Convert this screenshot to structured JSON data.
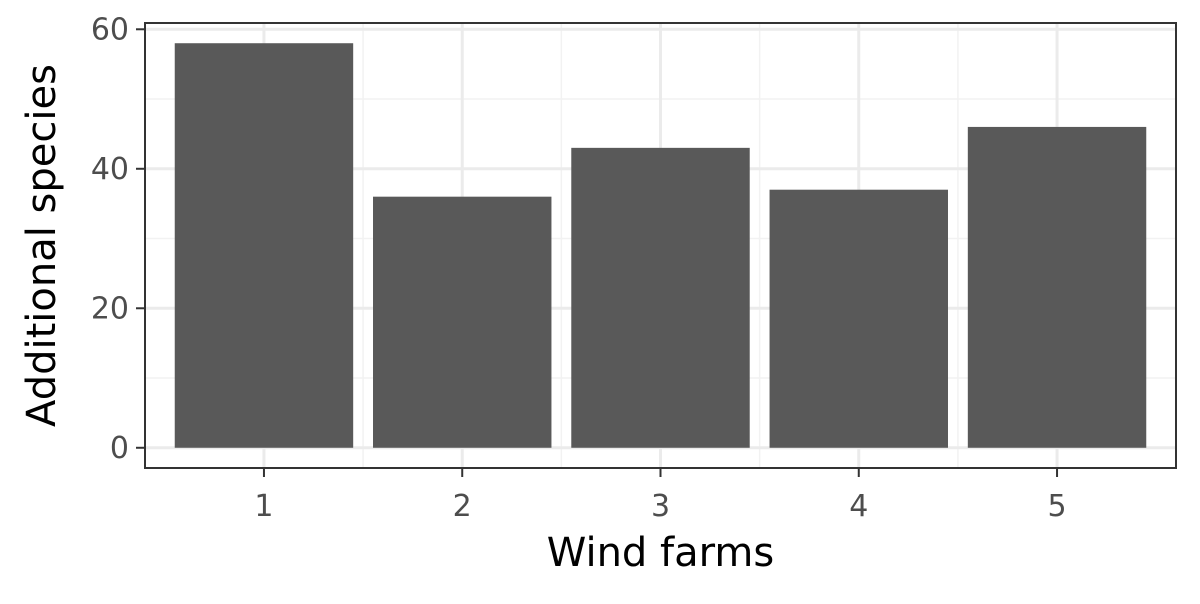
{
  "chart_data": {
    "type": "bar",
    "title": "",
    "xlabel": "Wind farms",
    "ylabel": "Additional species",
    "categories": [
      "1",
      "2",
      "3",
      "4",
      "5"
    ],
    "values": [
      58,
      36,
      43,
      37,
      46
    ],
    "ylim": [
      -2.9,
      60.9
    ],
    "y_ticks": [
      "0",
      "20",
      "40",
      "60"
    ],
    "grid": true,
    "legend": "none",
    "colors": {
      "bar": "#595959",
      "panel_border": "#333333",
      "grid_major": "#ebebeb",
      "grid_minor": "#f2f2f2",
      "tick_text": "#4d4d4d",
      "axis_title": "#000000"
    }
  }
}
